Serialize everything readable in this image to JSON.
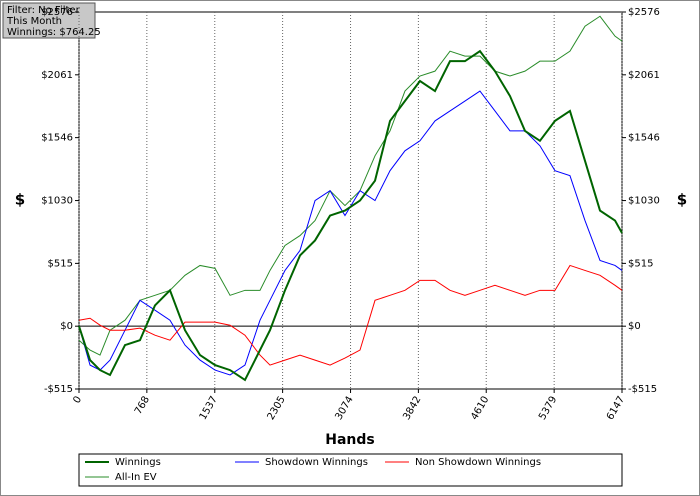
{
  "chart_data": {
    "type": "line",
    "info": [
      "Filter: No Filter",
      "This Month",
      "Winnings: $764.25"
    ],
    "xlabel": "Hands",
    "ylabel": "$",
    "xlim": [
      0,
      6147
    ],
    "ylim": [
      -515,
      2576
    ],
    "xticks": [
      0,
      768,
      1537,
      2305,
      3074,
      3842,
      4610,
      5379,
      6147
    ],
    "yticks": [
      {
        "value": -515,
        "label": "-$515"
      },
      {
        "value": 0,
        "label": "$0"
      },
      {
        "value": 515,
        "label": "$515"
      },
      {
        "value": 1030,
        "label": "$1030"
      },
      {
        "value": 1546,
        "label": "$1546"
      },
      {
        "value": 2061,
        "label": "$2061"
      },
      {
        "value": 2576,
        "label": "$2576"
      }
    ],
    "grid": "x",
    "x": [
      0,
      125,
      238,
      351,
      521,
      690,
      860,
      1030,
      1200,
      1370,
      1540,
      1710,
      1879,
      2049,
      2162,
      2332,
      2502,
      2672,
      2842,
      3011,
      3181,
      3351,
      3521,
      3690,
      3860,
      4030,
      4200,
      4369,
      4539,
      4709,
      4879,
      5049,
      5218,
      5388,
      5558,
      5728,
      5898,
      6068,
      6147
    ],
    "series": [
      {
        "name": "Winnings",
        "color": "#006400",
        "width": 2,
        "values": [
          0,
          -278,
          -360,
          -400,
          -155,
          -115,
          170,
          294,
          -33,
          -237,
          -319,
          -360,
          -441,
          -196,
          -33,
          294,
          580,
          703,
          907,
          948,
          1030,
          1193,
          1683,
          1846,
          2010,
          1928,
          2173,
          2173,
          2255,
          2091,
          1887,
          1601,
          1520,
          1683,
          1765,
          1356,
          948,
          866,
          764
        ]
      },
      {
        "name": "Showdown Winnings",
        "color": "#0000ff",
        "width": 1,
        "values": [
          0,
          -319,
          -360,
          -278,
          -33,
          212,
          131,
          49,
          -155,
          -278,
          -360,
          -400,
          -319,
          49,
          212,
          457,
          621,
          1030,
          1111,
          907,
          1111,
          1030,
          1275,
          1438,
          1520,
          1683,
          1765,
          1846,
          1928,
          1765,
          1601,
          1601,
          1479,
          1275,
          1234,
          866,
          539,
          498,
          457
        ]
      },
      {
        "name": "Non Showdown Winnings",
        "color": "#ff0000",
        "width": 1,
        "values": [
          49,
          65,
          8,
          -33,
          -33,
          -16,
          -74,
          -115,
          33,
          33,
          33,
          8,
          -74,
          -237,
          -319,
          -278,
          -237,
          -278,
          -319,
          -261,
          -196,
          212,
          253,
          294,
          376,
          376,
          294,
          253,
          294,
          335,
          294,
          253,
          294,
          294,
          498,
          457,
          417,
          335,
          294
        ]
      },
      {
        "name": "All-In EV",
        "color": "#2a8c2a",
        "width": 1,
        "values": [
          -115,
          -196,
          -237,
          -33,
          49,
          212,
          253,
          294,
          417,
          498,
          474,
          253,
          294,
          294,
          457,
          662,
          743,
          866,
          1111,
          989,
          1111,
          1397,
          1601,
          1928,
          2051,
          2091,
          2255,
          2214,
          2214,
          2091,
          2051,
          2091,
          2173,
          2173,
          2255,
          2459,
          2541,
          2378,
          2337
        ]
      }
    ]
  }
}
